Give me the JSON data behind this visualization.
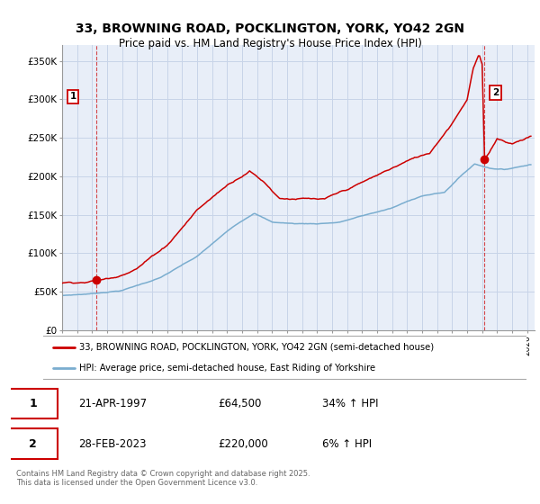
{
  "title_line1": "33, BROWNING ROAD, POCKLINGTON, YORK, YO42 2GN",
  "title_line2": "Price paid vs. HM Land Registry's House Price Index (HPI)",
  "legend_label_red": "33, BROWNING ROAD, POCKLINGTON, YORK, YO42 2GN (semi-detached house)",
  "legend_label_blue": "HPI: Average price, semi-detached house, East Riding of Yorkshire",
  "annotation1_date": "21-APR-1997",
  "annotation1_price": "£64,500",
  "annotation1_hpi": "34% ↑ HPI",
  "annotation2_date": "28-FEB-2023",
  "annotation2_price": "£220,000",
  "annotation2_hpi": "6% ↑ HPI",
  "footnote": "Contains HM Land Registry data © Crown copyright and database right 2025.\nThis data is licensed under the Open Government Licence v3.0.",
  "red_color": "#cc0000",
  "blue_color": "#7aadcf",
  "background_color": "#ffffff",
  "chart_bg_color": "#e8eef8",
  "grid_color": "#c8d4e8",
  "ylim": [
    0,
    370000
  ],
  "yticks": [
    0,
    50000,
    100000,
    150000,
    200000,
    250000,
    300000,
    350000
  ],
  "ytick_labels": [
    "£0",
    "£50K",
    "£100K",
    "£150K",
    "£200K",
    "£250K",
    "£300K",
    "£350K"
  ],
  "xstart_year": 1995.0,
  "xend_year": 2026.5,
  "sale1_year": 1997.31,
  "sale1_price": 64500,
  "sale2_year": 2023.16,
  "sale2_price": 220000
}
